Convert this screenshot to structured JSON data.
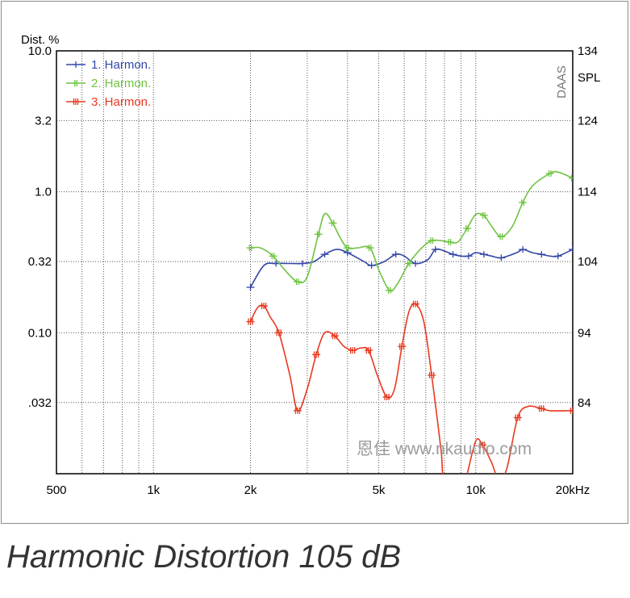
{
  "figure": {
    "caption": "Harmonic Distortion 105 dB",
    "watermark": "恩佳 www.nkaudio.com",
    "brand": "DAAS"
  },
  "chart_data": {
    "type": "line",
    "x_scale": "log",
    "xlim": [
      500,
      20000
    ],
    "x_ticks": [
      500,
      1000,
      2000,
      5000,
      10000,
      20000
    ],
    "x_tick_labels": [
      "500",
      "1k",
      "2k",
      "5k",
      "10k",
      "20kHz"
    ],
    "y_scale": "log",
    "ylabel": "Dist. %",
    "ylim": [
      0.01,
      10
    ],
    "y_ticks": [
      10,
      3.2,
      1.0,
      0.32,
      0.1,
      0.032
    ],
    "y_tick_labels": [
      "10.0",
      "3.2",
      "1.0",
      "0.32",
      "0.10",
      ".032"
    ],
    "y2label": "SPL",
    "y2_ticks": [
      134,
      124,
      114,
      104,
      94,
      84
    ],
    "grid": true,
    "legend_position": "top-left",
    "series": [
      {
        "name": "1. Harmon.",
        "color": "#3346a6",
        "points": [
          [
            2000,
            0.21
          ],
          [
            2200,
            0.3
          ],
          [
            2400,
            0.31
          ],
          [
            2650,
            0.31
          ],
          [
            2900,
            0.31
          ],
          [
            3150,
            0.32
          ],
          [
            3400,
            0.36
          ],
          [
            3700,
            0.39
          ],
          [
            4000,
            0.37
          ],
          [
            4500,
            0.32
          ],
          [
            4750,
            0.3
          ],
          [
            5200,
            0.32
          ],
          [
            5650,
            0.36
          ],
          [
            6000,
            0.35
          ],
          [
            6500,
            0.31
          ],
          [
            7100,
            0.33
          ],
          [
            7500,
            0.39
          ],
          [
            8000,
            0.38
          ],
          [
            8500,
            0.36
          ],
          [
            9000,
            0.35
          ],
          [
            9500,
            0.35
          ],
          [
            10000,
            0.37
          ],
          [
            10600,
            0.36
          ],
          [
            11200,
            0.35
          ],
          [
            12000,
            0.34
          ],
          [
            13400,
            0.37
          ],
          [
            14000,
            0.39
          ],
          [
            15000,
            0.37
          ],
          [
            16000,
            0.36
          ],
          [
            17000,
            0.35
          ],
          [
            18000,
            0.35
          ],
          [
            20000,
            0.39
          ]
        ]
      },
      {
        "name": "2. Harmon.",
        "color": "#6ec441",
        "points": [
          [
            2000,
            0.4
          ],
          [
            2150,
            0.4
          ],
          [
            2350,
            0.35
          ],
          [
            2550,
            0.28
          ],
          [
            2800,
            0.23
          ],
          [
            3000,
            0.25
          ],
          [
            3250,
            0.5
          ],
          [
            3400,
            0.7
          ],
          [
            3600,
            0.6
          ],
          [
            3800,
            0.47
          ],
          [
            4000,
            0.4
          ],
          [
            4300,
            0.4
          ],
          [
            4700,
            0.4
          ],
          [
            5000,
            0.28
          ],
          [
            5400,
            0.2
          ],
          [
            5700,
            0.22
          ],
          [
            6200,
            0.31
          ],
          [
            6800,
            0.4
          ],
          [
            7300,
            0.45
          ],
          [
            7800,
            0.45
          ],
          [
            8300,
            0.44
          ],
          [
            8800,
            0.44
          ],
          [
            9400,
            0.55
          ],
          [
            10000,
            0.69
          ],
          [
            10600,
            0.68
          ],
          [
            11200,
            0.57
          ],
          [
            12000,
            0.48
          ],
          [
            13000,
            0.57
          ],
          [
            14000,
            0.84
          ],
          [
            15000,
            1.1
          ],
          [
            17000,
            1.35
          ],
          [
            18000,
            1.38
          ],
          [
            20000,
            1.25
          ]
        ]
      },
      {
        "name": "3. Harmon.",
        "color": "#e8381f",
        "points": [
          [
            2000,
            0.12
          ],
          [
            2100,
            0.15
          ],
          [
            2200,
            0.155
          ],
          [
            2300,
            0.13
          ],
          [
            2450,
            0.1
          ],
          [
            2650,
            0.05
          ],
          [
            2800,
            0.028
          ],
          [
            3000,
            0.04
          ],
          [
            3200,
            0.07
          ],
          [
            3400,
            0.1
          ],
          [
            3650,
            0.095
          ],
          [
            3900,
            0.08
          ],
          [
            4150,
            0.075
          ],
          [
            4400,
            0.078
          ],
          [
            4650,
            0.075
          ],
          [
            4950,
            0.05
          ],
          [
            5300,
            0.035
          ],
          [
            5600,
            0.04
          ],
          [
            5900,
            0.08
          ],
          [
            6200,
            0.14
          ],
          [
            6500,
            0.16
          ],
          [
            6900,
            0.12
          ],
          [
            7300,
            0.05
          ],
          [
            7800,
            0.015
          ],
          [
            8000,
            0.009
          ],
          [
            9000,
            0.008
          ],
          [
            9300,
            0.009
          ],
          [
            10000,
            0.017
          ],
          [
            10500,
            0.016
          ],
          [
            11200,
            0.012
          ],
          [
            11800,
            0.009
          ],
          [
            12500,
            0.011
          ],
          [
            13500,
            0.025
          ],
          [
            14500,
            0.03
          ],
          [
            16000,
            0.029
          ],
          [
            17000,
            0.028
          ],
          [
            20000,
            0.028
          ]
        ]
      }
    ]
  }
}
